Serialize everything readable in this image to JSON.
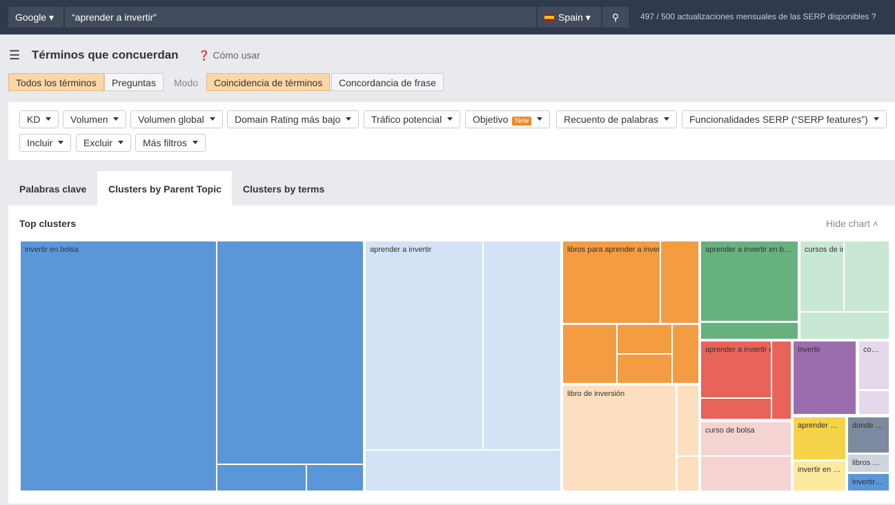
{
  "search": {
    "engine": "Google",
    "query": "“aprender a invertir”",
    "country": "Spain",
    "used": "497",
    "sep": "/",
    "total": "500",
    "usage_text": "actualizaciones mensuales de las SERP disponibles"
  },
  "header": {
    "title": "Términos que concuerdan",
    "help": "Cómo usar"
  },
  "mode_tabs": [
    "Todos los términos",
    "Preguntas"
  ],
  "mode_label": "Modo",
  "match_tabs": [
    "Coincidencia de términos",
    "Concordancia de frase"
  ],
  "filters": [
    "KD",
    "Volumen",
    "Volumen global",
    "Domain Rating más bajo",
    "Tráfico potencial",
    "Objetivo",
    "Recuento de palabras",
    "Funcionalidades SERP (“SERP features”)",
    "Incluir",
    "Excluir",
    "Más filtros"
  ],
  "new_badge": "New",
  "view_tabs": [
    "Palabras clave",
    "Clusters by Parent Topic",
    "Clusters by terms"
  ],
  "chart": {
    "title": "Top clusters",
    "hide": "Hide chart",
    "clusters": [
      "invertir en bolsa",
      "aprender a invertir",
      "libros para aprender a invertir",
      "libro de inversión",
      "aprender a invertir en b…",
      "cursos de inversion e…",
      "aprender a invertir en…",
      "curso de bolsa",
      "invertir",
      "co…",
      "aprender …",
      "invertir en …",
      "donde …",
      "libros …",
      "invertir…"
    ]
  }
}
